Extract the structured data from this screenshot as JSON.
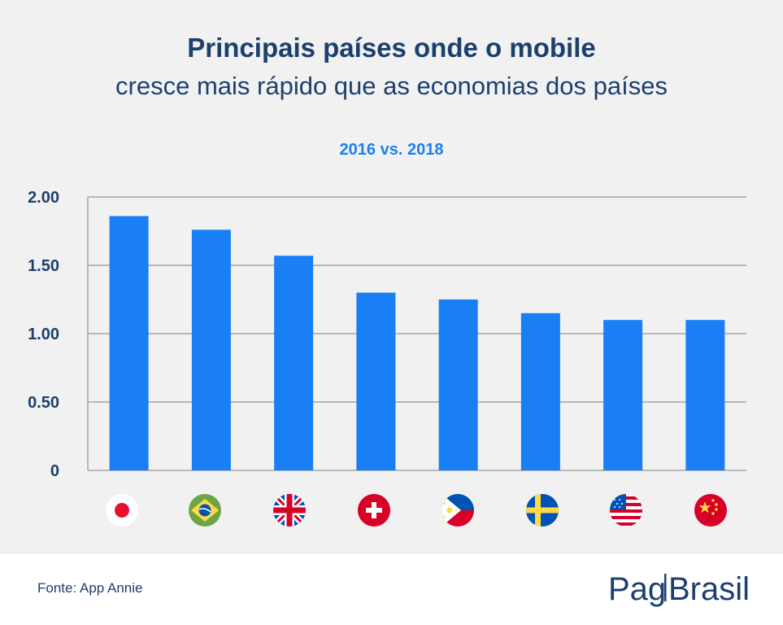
{
  "title": "Principais países onde o mobile",
  "subtitle": "cresce mais rápido que as economias dos países",
  "period": "2016 vs. 2018",
  "source": "Fonte: App Annie",
  "brand": {
    "part1": "Pag",
    "part2": "Brasil",
    "color": "#1c3f6e"
  },
  "colors": {
    "bar": "#1a7ff5",
    "grid": "#a6a6a6",
    "axis_text": "#1c3f6e",
    "background": "#f1f1f1"
  },
  "chart_data": {
    "type": "bar",
    "title": "Principais países onde o mobile",
    "subtitle": "cresce mais rápido que as economias dos países",
    "categories": [
      "japan-flag",
      "brazil-flag",
      "uk-flag",
      "switzerland-flag",
      "philippines-flag",
      "sweden-flag",
      "usa-flag",
      "china-flag"
    ],
    "values": [
      1.86,
      1.76,
      1.57,
      1.3,
      1.25,
      1.15,
      1.1,
      1.1
    ],
    "ylim": [
      0,
      2.0
    ],
    "yticks": [
      "0",
      "0.50",
      "1.00",
      "1.50",
      "2.00"
    ],
    "ytick_values": [
      0,
      0.5,
      1.0,
      1.5,
      2.0
    ],
    "grid": true,
    "legend": "none"
  }
}
